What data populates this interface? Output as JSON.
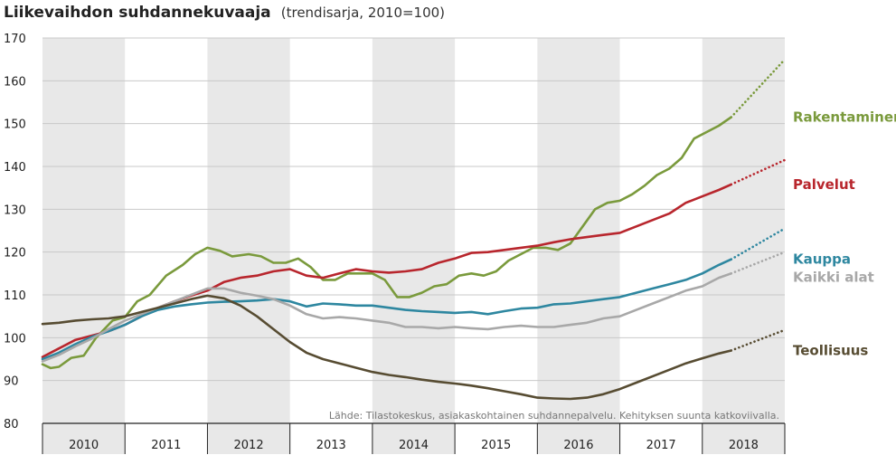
{
  "chart_data": {
    "type": "line",
    "title": "Liikevaihdon suhdannekuvaaja",
    "subtitle": "(trendisarja, 2010=100)",
    "xlabel": "",
    "ylabel": "",
    "ylim": [
      80,
      170
    ],
    "yticks": [
      "170",
      "160",
      "150",
      "140",
      "130",
      "120",
      "110",
      "100",
      "90",
      "80"
    ],
    "xlim": [
      2010.0,
      2019.0
    ],
    "x_categories": [
      "2010",
      "2011",
      "2012",
      "2013",
      "2014",
      "2015",
      "2016",
      "2017",
      "2018"
    ],
    "grid": "horizontal",
    "shaded_bands": "alternate years",
    "source": "Lähde: Tilastokeskus, asiakaskohtainen suhdannepalvelu. Kehityksen suunta katkoviivalla.",
    "series": [
      {
        "name": "Rakentaminen",
        "color": "#7a9a3c",
        "points": [
          [
            2010.0,
            93.8
          ],
          [
            2010.1,
            92.9
          ],
          [
            2010.2,
            93.2
          ],
          [
            2010.35,
            95.3
          ],
          [
            2010.5,
            95.8
          ],
          [
            2010.65,
            100
          ],
          [
            2010.85,
            104
          ],
          [
            2011.0,
            104.8
          ],
          [
            2011.15,
            108.5
          ],
          [
            2011.3,
            110
          ],
          [
            2011.5,
            114.5
          ],
          [
            2011.7,
            117
          ],
          [
            2011.85,
            119.5
          ],
          [
            2012.0,
            121
          ],
          [
            2012.15,
            120.3
          ],
          [
            2012.3,
            119
          ],
          [
            2012.5,
            119.5
          ],
          [
            2012.65,
            119
          ],
          [
            2012.8,
            117.5
          ],
          [
            2012.95,
            117.5
          ],
          [
            2013.1,
            118.5
          ],
          [
            2013.25,
            116.5
          ],
          [
            2013.4,
            113.5
          ],
          [
            2013.55,
            113.5
          ],
          [
            2013.7,
            115
          ],
          [
            2013.85,
            115
          ],
          [
            2014.0,
            115
          ],
          [
            2014.15,
            113.5
          ],
          [
            2014.3,
            109.5
          ],
          [
            2014.45,
            109.5
          ],
          [
            2014.6,
            110.5
          ],
          [
            2014.75,
            112
          ],
          [
            2014.9,
            112.5
          ],
          [
            2015.05,
            114.5
          ],
          [
            2015.2,
            115
          ],
          [
            2015.35,
            114.5
          ],
          [
            2015.5,
            115.5
          ],
          [
            2015.65,
            118
          ],
          [
            2015.8,
            119.5
          ],
          [
            2015.95,
            121
          ],
          [
            2016.1,
            121
          ],
          [
            2016.25,
            120.5
          ],
          [
            2016.4,
            122
          ],
          [
            2016.55,
            126
          ],
          [
            2016.7,
            130
          ],
          [
            2016.85,
            131.5
          ],
          [
            2017.0,
            132
          ],
          [
            2017.15,
            133.5
          ],
          [
            2017.3,
            135.5
          ],
          [
            2017.45,
            138
          ],
          [
            2017.6,
            139.5
          ],
          [
            2017.75,
            142
          ],
          [
            2017.9,
            146.5
          ],
          [
            2018.05,
            148
          ],
          [
            2018.2,
            149.5
          ],
          [
            2018.35,
            151.5
          ]
        ],
        "trend": [
          [
            2018.35,
            151.5
          ],
          [
            2019.0,
            165
          ]
        ]
      },
      {
        "name": "Palvelut",
        "color": "#b8262d",
        "points": [
          [
            2010.0,
            95.5
          ],
          [
            2010.2,
            97.5
          ],
          [
            2010.4,
            99.5
          ],
          [
            2010.6,
            100.5
          ],
          [
            2010.8,
            101.5
          ],
          [
            2011.0,
            103
          ],
          [
            2011.2,
            105
          ],
          [
            2011.4,
            107
          ],
          [
            2011.6,
            108.5
          ],
          [
            2011.8,
            109.8
          ],
          [
            2012.0,
            111
          ],
          [
            2012.2,
            113
          ],
          [
            2012.4,
            114
          ],
          [
            2012.6,
            114.5
          ],
          [
            2012.8,
            115.5
          ],
          [
            2013.0,
            116
          ],
          [
            2013.2,
            114.5
          ],
          [
            2013.4,
            114
          ],
          [
            2013.6,
            115
          ],
          [
            2013.8,
            116
          ],
          [
            2014.0,
            115.5
          ],
          [
            2014.2,
            115.2
          ],
          [
            2014.4,
            115.5
          ],
          [
            2014.6,
            116
          ],
          [
            2014.8,
            117.5
          ],
          [
            2015.0,
            118.5
          ],
          [
            2015.2,
            119.8
          ],
          [
            2015.4,
            120
          ],
          [
            2015.6,
            120.5
          ],
          [
            2015.8,
            121
          ],
          [
            2016.0,
            121.5
          ],
          [
            2016.2,
            122.3
          ],
          [
            2016.4,
            123
          ],
          [
            2016.6,
            123.5
          ],
          [
            2016.8,
            124
          ],
          [
            2017.0,
            124.5
          ],
          [
            2017.2,
            126
          ],
          [
            2017.4,
            127.5
          ],
          [
            2017.6,
            129
          ],
          [
            2017.8,
            131.5
          ],
          [
            2018.0,
            133
          ],
          [
            2018.2,
            134.5
          ],
          [
            2018.35,
            135.8
          ]
        ],
        "trend": [
          [
            2018.35,
            135.8
          ],
          [
            2019.0,
            141.5
          ]
        ]
      },
      {
        "name": "Kauppa",
        "color": "#2e87a0",
        "points": [
          [
            2010.0,
            95
          ],
          [
            2010.2,
            96.5
          ],
          [
            2010.4,
            98.5
          ],
          [
            2010.6,
            100.2
          ],
          [
            2010.8,
            101.5
          ],
          [
            2011.0,
            103
          ],
          [
            2011.2,
            105
          ],
          [
            2011.4,
            106.5
          ],
          [
            2011.6,
            107.3
          ],
          [
            2011.8,
            107.8
          ],
          [
            2012.0,
            108.2
          ],
          [
            2012.2,
            108.4
          ],
          [
            2012.4,
            108.5
          ],
          [
            2012.6,
            108.7
          ],
          [
            2012.8,
            109
          ],
          [
            2013.0,
            108.5
          ],
          [
            2013.2,
            107.3
          ],
          [
            2013.4,
            108
          ],
          [
            2013.6,
            107.8
          ],
          [
            2013.8,
            107.5
          ],
          [
            2014.0,
            107.5
          ],
          [
            2014.2,
            107
          ],
          [
            2014.4,
            106.5
          ],
          [
            2014.6,
            106.2
          ],
          [
            2014.8,
            106
          ],
          [
            2015.0,
            105.8
          ],
          [
            2015.2,
            106
          ],
          [
            2015.4,
            105.5
          ],
          [
            2015.6,
            106.2
          ],
          [
            2015.8,
            106.8
          ],
          [
            2016.0,
            107
          ],
          [
            2016.2,
            107.8
          ],
          [
            2016.4,
            108
          ],
          [
            2016.6,
            108.5
          ],
          [
            2016.8,
            109
          ],
          [
            2017.0,
            109.5
          ],
          [
            2017.2,
            110.5
          ],
          [
            2017.4,
            111.5
          ],
          [
            2017.6,
            112.5
          ],
          [
            2017.8,
            113.5
          ],
          [
            2018.0,
            115
          ],
          [
            2018.2,
            117
          ],
          [
            2018.35,
            118.3
          ]
        ],
        "trend": [
          [
            2018.35,
            118.3
          ],
          [
            2019.0,
            125.5
          ]
        ]
      },
      {
        "name": "Kaikki alat",
        "color": "#a8a8a8",
        "points": [
          [
            2010.0,
            94.5
          ],
          [
            2010.2,
            96
          ],
          [
            2010.4,
            98
          ],
          [
            2010.6,
            99.8
          ],
          [
            2010.8,
            102
          ],
          [
            2011.0,
            104
          ],
          [
            2011.2,
            105.5
          ],
          [
            2011.4,
            107
          ],
          [
            2011.6,
            108.5
          ],
          [
            2011.8,
            110
          ],
          [
            2012.0,
            111.5
          ],
          [
            2012.2,
            111.5
          ],
          [
            2012.4,
            110.5
          ],
          [
            2012.6,
            109.8
          ],
          [
            2012.8,
            109
          ],
          [
            2013.0,
            107.5
          ],
          [
            2013.2,
            105.5
          ],
          [
            2013.4,
            104.5
          ],
          [
            2013.6,
            104.8
          ],
          [
            2013.8,
            104.5
          ],
          [
            2014.0,
            104
          ],
          [
            2014.2,
            103.5
          ],
          [
            2014.4,
            102.5
          ],
          [
            2014.6,
            102.5
          ],
          [
            2014.8,
            102.2
          ],
          [
            2015.0,
            102.5
          ],
          [
            2015.2,
            102.2
          ],
          [
            2015.4,
            102
          ],
          [
            2015.6,
            102.5
          ],
          [
            2015.8,
            102.8
          ],
          [
            2016.0,
            102.5
          ],
          [
            2016.2,
            102.5
          ],
          [
            2016.4,
            103
          ],
          [
            2016.6,
            103.5
          ],
          [
            2016.8,
            104.5
          ],
          [
            2017.0,
            105
          ],
          [
            2017.2,
            106.5
          ],
          [
            2017.4,
            108
          ],
          [
            2017.6,
            109.5
          ],
          [
            2017.8,
            111
          ],
          [
            2018.0,
            112
          ],
          [
            2018.2,
            114
          ],
          [
            2018.35,
            115
          ]
        ],
        "trend": [
          [
            2018.35,
            115
          ],
          [
            2019.0,
            120
          ]
        ]
      },
      {
        "name": "Teollisuus",
        "color": "#574c32",
        "points": [
          [
            2010.0,
            103.2
          ],
          [
            2010.2,
            103.5
          ],
          [
            2010.4,
            104
          ],
          [
            2010.6,
            104.3
          ],
          [
            2010.8,
            104.5
          ],
          [
            2011.0,
            105
          ],
          [
            2011.2,
            106
          ],
          [
            2011.4,
            107
          ],
          [
            2011.6,
            108
          ],
          [
            2011.8,
            109
          ],
          [
            2012.0,
            109.8
          ],
          [
            2012.2,
            109.2
          ],
          [
            2012.4,
            107.5
          ],
          [
            2012.6,
            105
          ],
          [
            2012.8,
            102
          ],
          [
            2013.0,
            99
          ],
          [
            2013.2,
            96.5
          ],
          [
            2013.4,
            95
          ],
          [
            2013.6,
            94
          ],
          [
            2013.8,
            93
          ],
          [
            2014.0,
            92
          ],
          [
            2014.2,
            91.3
          ],
          [
            2014.4,
            90.8
          ],
          [
            2014.6,
            90.2
          ],
          [
            2014.8,
            89.7
          ],
          [
            2015.0,
            89.3
          ],
          [
            2015.2,
            88.8
          ],
          [
            2015.4,
            88.2
          ],
          [
            2015.6,
            87.5
          ],
          [
            2015.8,
            86.8
          ],
          [
            2016.0,
            86
          ],
          [
            2016.2,
            85.8
          ],
          [
            2016.4,
            85.7
          ],
          [
            2016.6,
            86
          ],
          [
            2016.8,
            86.8
          ],
          [
            2017.0,
            88
          ],
          [
            2017.2,
            89.5
          ],
          [
            2017.4,
            91
          ],
          [
            2017.6,
            92.5
          ],
          [
            2017.8,
            94
          ],
          [
            2018.0,
            95.2
          ],
          [
            2018.2,
            96.3
          ],
          [
            2018.35,
            97
          ]
        ],
        "trend": [
          [
            2018.35,
            97
          ],
          [
            2019.0,
            101.8
          ]
        ]
      }
    ]
  }
}
